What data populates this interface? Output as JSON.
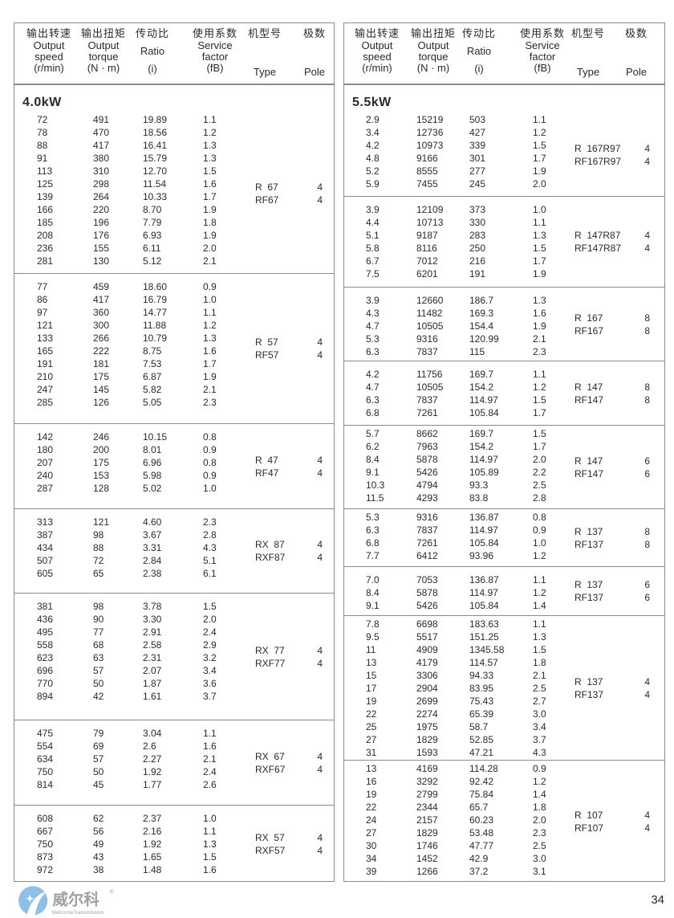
{
  "headers": [
    {
      "cn": "输出转速",
      "en": [
        "Output",
        "speed",
        "(r/min)"
      ]
    },
    {
      "cn": "输出扭矩",
      "en": [
        "Output",
        "torque",
        "(N · m)"
      ]
    },
    {
      "cn": "传动比",
      "en": [
        "Ratio",
        "",
        "(i)"
      ]
    },
    {
      "cn": "使用系数",
      "en": [
        "Service",
        "factor",
        "(fB)"
      ]
    },
    {
      "cn": "机型号",
      "en": [
        "Type"
      ]
    },
    {
      "cn": "极数",
      "en": [
        "Pole"
      ]
    }
  ],
  "left": {
    "power": "4.0kW",
    "groups": [
      {
        "rows": [
          [
            "72",
            "491",
            "19.89",
            "1.1"
          ],
          [
            "78",
            "470",
            "18.56",
            "1.2"
          ],
          [
            "88",
            "417",
            "16.41",
            "1.3"
          ],
          [
            "91",
            "380",
            "15.79",
            "1.3"
          ],
          [
            "113",
            "310",
            "12.70",
            "1.5"
          ],
          [
            "125",
            "298",
            "11.54",
            "1.6"
          ],
          [
            "139",
            "264",
            "10.33",
            "1.7"
          ],
          [
            "166",
            "220",
            "8.70",
            "1.9"
          ],
          [
            "185",
            "196",
            "7.79",
            "1.8"
          ],
          [
            "208",
            "176",
            "6.93",
            "1.9"
          ],
          [
            "236",
            "155",
            "6.11",
            "2.0"
          ],
          [
            "281",
            "130",
            "5.12",
            "2.1"
          ]
        ],
        "types": [
          "R  67",
          "RF67"
        ],
        "poles": [
          "4",
          "4"
        ]
      },
      {
        "rows": [
          [
            "77",
            "459",
            "18.60",
            "0.9"
          ],
          [
            "86",
            "417",
            "16.79",
            "1.0"
          ],
          [
            "97",
            "360",
            "14.77",
            "1.1"
          ],
          [
            "121",
            "300",
            "11.88",
            "1.2"
          ],
          [
            "133",
            "266",
            "10.79",
            "1.3"
          ],
          [
            "165",
            "222",
            "8.75",
            "1.6"
          ],
          [
            "191",
            "181",
            "7.53",
            "1.7"
          ],
          [
            "210",
            "175",
            "6.87",
            "1.9"
          ],
          [
            "247",
            "145",
            "5.82",
            "2.1"
          ],
          [
            "285",
            "126",
            "5.05",
            "2.3"
          ]
        ],
        "types": [
          "R  57",
          "RF57"
        ],
        "poles": [
          "4",
          "4"
        ]
      },
      {
        "rows": [
          [
            "142",
            "246",
            "10.15",
            "0.8"
          ],
          [
            "180",
            "200",
            "8.01",
            "0.9"
          ],
          [
            "207",
            "175",
            "6.96",
            "0.8"
          ],
          [
            "240",
            "153",
            "5.98",
            "0.9"
          ],
          [
            "287",
            "128",
            "5.02",
            "1.0"
          ]
        ],
        "types": [
          "R  47",
          "RF47"
        ],
        "poles": [
          "4",
          "4"
        ]
      },
      {
        "rows": [
          [
            "313",
            "121",
            "4.60",
            "2.3"
          ],
          [
            "387",
            "98",
            "3.67",
            "2.8"
          ],
          [
            "434",
            "88",
            "3.31",
            "4.3"
          ],
          [
            "507",
            "72",
            "2.84",
            "5.1"
          ],
          [
            "605",
            "65",
            "2.38",
            "6.1"
          ]
        ],
        "types": [
          "RX  87",
          "RXF87"
        ],
        "poles": [
          "4",
          "4"
        ]
      },
      {
        "rows": [
          [
            "381",
            "98",
            "3.78",
            "1.5"
          ],
          [
            "436",
            "90",
            "3.30",
            "2.0"
          ],
          [
            "495",
            "77",
            "2.91",
            "2.4"
          ],
          [
            "558",
            "68",
            "2.58",
            "2.9"
          ],
          [
            "623",
            "63",
            "2.31",
            "3.2"
          ],
          [
            "696",
            "57",
            "2.07",
            "3.4"
          ],
          [
            "770",
            "50",
            "1.87",
            "3.6"
          ],
          [
            "894",
            "42",
            "1.61",
            "3.7"
          ]
        ],
        "types": [
          "RX  77",
          "RXF77"
        ],
        "poles": [
          "4",
          "4"
        ]
      },
      {
        "rows": [
          [
            "475",
            "79",
            "3.04",
            "1.1"
          ],
          [
            "554",
            "69",
            "2.6",
            "1.6"
          ],
          [
            "634",
            "57",
            "2.27",
            "2.1"
          ],
          [
            "750",
            "50",
            "1.92",
            "2.4"
          ],
          [
            "814",
            "45",
            "1.77",
            "2.6"
          ]
        ],
        "types": [
          "RX  67",
          "RXF67"
        ],
        "poles": [
          "4",
          "4"
        ]
      },
      {
        "rows": [
          [
            "608",
            "62",
            "2.37",
            "1.0"
          ],
          [
            "667",
            "56",
            "2.16",
            "1.1"
          ],
          [
            "750",
            "49",
            "1.92",
            "1.3"
          ],
          [
            "873",
            "43",
            "1.65",
            "1.5"
          ],
          [
            "972",
            "38",
            "1.48",
            "1.6"
          ]
        ],
        "types": [
          "RX  57",
          "RXF57"
        ],
        "poles": [
          "4",
          "4"
        ]
      }
    ]
  },
  "right": {
    "power": "5.5kW",
    "groups": [
      {
        "rows": [
          [
            "2.9",
            "15219",
            "503",
            "1.1"
          ],
          [
            "3.4",
            "12736",
            "427",
            "1.2"
          ],
          [
            "4.2",
            "10973",
            "339",
            "1.5"
          ],
          [
            "4.8",
            "9166",
            "301",
            "1.7"
          ],
          [
            "5.2",
            "8555",
            "277",
            "1.9"
          ],
          [
            "5.9",
            "7455",
            "245",
            "2.0"
          ]
        ],
        "types": [
          "R  167R97",
          "RF167R97"
        ],
        "poles": [
          "4",
          "4"
        ]
      },
      {
        "rows": [
          [
            "3.9",
            "12109",
            "373",
            "1.0"
          ],
          [
            "4.4",
            "10713",
            "330",
            "1.1"
          ],
          [
            "5.1",
            "9187",
            "283",
            "1.3"
          ],
          [
            "5.8",
            "8116",
            "250",
            "1.5"
          ],
          [
            "6.7",
            "7012",
            "216",
            "1.7"
          ],
          [
            "7.5",
            "6201",
            "191",
            "1.9"
          ]
        ],
        "types": [
          "R  147R87",
          "RF147R87"
        ],
        "poles": [
          "4",
          "4"
        ]
      },
      {
        "rows": [
          [
            "3.9",
            "12660",
            "186.7",
            "1.3"
          ],
          [
            "4.3",
            "11482",
            "169.3",
            "1.6"
          ],
          [
            "4.7",
            "10505",
            "154.4",
            "1.9"
          ],
          [
            "5.3",
            "9316",
            "120.99",
            "2.1"
          ],
          [
            "6.3",
            "7837",
            "115",
            "2.3"
          ]
        ],
        "types": [
          "R  167",
          "RF167"
        ],
        "poles": [
          "8",
          "8"
        ]
      },
      {
        "rows": [
          [
            "4.2",
            "11756",
            "169.7",
            "1.1"
          ],
          [
            "4.7",
            "10505",
            "154.2",
            "1.2"
          ],
          [
            "6.3",
            "7837",
            "114.97",
            "1.5"
          ],
          [
            "6.8",
            "7261",
            "105.84",
            "1.7"
          ]
        ],
        "types": [
          "R  147",
          "RF147"
        ],
        "poles": [
          "8",
          "8"
        ]
      },
      {
        "rows": [
          [
            "5.7",
            "8662",
            "169.7",
            "1.5"
          ],
          [
            "6.2",
            "7963",
            "154.2",
            "1.7"
          ],
          [
            "8.4",
            "5878",
            "114.97",
            "2.0"
          ],
          [
            "9.1",
            "5426",
            "105.89",
            "2.2"
          ],
          [
            "10.3",
            "4794",
            "93.3",
            "2.5"
          ],
          [
            "11.5",
            "4293",
            "83.8",
            "2.8"
          ]
        ],
        "types": [
          "R  147",
          "RF147"
        ],
        "poles": [
          "6",
          "6"
        ]
      },
      {
        "rows": [
          [
            "5.3",
            "9316",
            "136.87",
            "0.8"
          ],
          [
            "6.3",
            "7837",
            "114.97",
            "0.9"
          ],
          [
            "6.8",
            "7261",
            "105.84",
            "1.0"
          ],
          [
            "7.7",
            "6412",
            "93.96",
            "1.2"
          ]
        ],
        "types": [
          "R  137",
          "RF137"
        ],
        "poles": [
          "8",
          "8"
        ]
      },
      {
        "rows": [
          [
            "7.0",
            "7053",
            "136.87",
            "1.1"
          ],
          [
            "8.4",
            "5878",
            "114.97",
            "1.2"
          ],
          [
            "9.1",
            "5426",
            "105.84",
            "1.4"
          ]
        ],
        "types": [
          "R  137",
          "RF137"
        ],
        "poles": [
          "6",
          "6"
        ]
      },
      {
        "rows": [
          [
            "7.8",
            "6698",
            "183.63",
            "1.1"
          ],
          [
            "9.5",
            "5517",
            "151.25",
            "1.3"
          ],
          [
            "11",
            "4909",
            "1345.58",
            "1.5"
          ],
          [
            "13",
            "4179",
            "114.57",
            "1.8"
          ],
          [
            "15",
            "3306",
            "94.33",
            "2.1"
          ],
          [
            "17",
            "2904",
            "83.95",
            "2.5"
          ],
          [
            "19",
            "2699",
            "75.43",
            "2.7"
          ],
          [
            "22",
            "2274",
            "65.39",
            "3.0"
          ],
          [
            "25",
            "1975",
            "58.7",
            "3.4"
          ],
          [
            "27",
            "1829",
            "52.85",
            "3.7"
          ],
          [
            "31",
            "1593",
            "47.21",
            "4.3"
          ]
        ],
        "types": [
          "R  137",
          "RF137"
        ],
        "poles": [
          "4",
          "4"
        ]
      },
      {
        "rows": [
          [
            "13",
            "4169",
            "114.28",
            "0.9"
          ],
          [
            "16",
            "3292",
            "92.42",
            "1.2"
          ],
          [
            "19",
            "2799",
            "75.84",
            "1.4"
          ],
          [
            "22",
            "2344",
            "65.7",
            "1.8"
          ],
          [
            "24",
            "2157",
            "60.23",
            "2.0"
          ],
          [
            "27",
            "1829",
            "53.48",
            "2.3"
          ],
          [
            "30",
            "1746",
            "47.77",
            "2.5"
          ],
          [
            "34",
            "1452",
            "42.9",
            "3.0"
          ],
          [
            "39",
            "1266",
            "37.2",
            "3.1"
          ]
        ],
        "types": [
          "R  107",
          "RF107"
        ],
        "poles": [
          "4",
          "4"
        ]
      }
    ]
  },
  "watermark": {
    "brand": "威尔科",
    "sub": "WelcomeTransmission",
    "colors": {
      "logo": "#5aa0dc",
      "text": "#888888"
    }
  },
  "page_number": "34"
}
